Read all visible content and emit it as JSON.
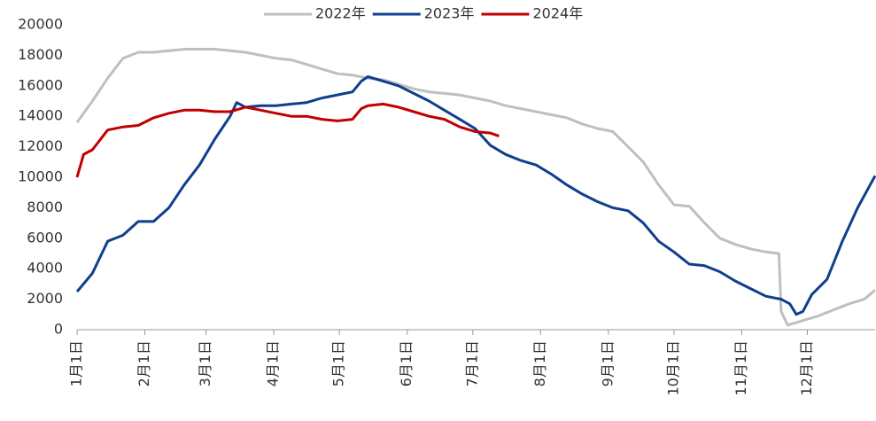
{
  "chart_data": {
    "type": "line",
    "xlim": [
      0,
      365
    ],
    "xticks": [
      {
        "value": 0,
        "label": "1月1日"
      },
      {
        "value": 31,
        "label": "2月1日"
      },
      {
        "value": 59,
        "label": "3月1日"
      },
      {
        "value": 90,
        "label": "4月1日"
      },
      {
        "value": 120,
        "label": "5月1日"
      },
      {
        "value": 151,
        "label": "6月1日"
      },
      {
        "value": 181,
        "label": "7月1日"
      },
      {
        "value": 212,
        "label": "8月1日"
      },
      {
        "value": 243,
        "label": "9月1日"
      },
      {
        "value": 273,
        "label": "10月1日"
      },
      {
        "value": 304,
        "label": "11月1日"
      },
      {
        "value": 334,
        "label": "12月1日"
      }
    ],
    "ylim": [
      0,
      20000
    ],
    "yticks": [
      0,
      2000,
      4000,
      6000,
      8000,
      10000,
      12000,
      14000,
      16000,
      18000,
      20000
    ],
    "grid": false,
    "legend": "top",
    "series": [
      {
        "name": "2022年",
        "color": "#bfbfbf",
        "x": [
          0,
          7,
          14,
          21,
          28,
          35,
          42,
          49,
          56,
          63,
          70,
          77,
          84,
          91,
          98,
          105,
          112,
          119,
          126,
          133,
          140,
          147,
          154,
          161,
          168,
          175,
          182,
          189,
          196,
          203,
          210,
          217,
          224,
          231,
          238,
          245,
          252,
          259,
          266,
          273,
          280,
          287,
          294,
          301,
          308,
          315,
          321,
          322,
          325,
          332,
          339,
          346,
          353,
          360,
          365
        ],
        "values": [
          13600,
          15000,
          16500,
          17800,
          18200,
          18200,
          18300,
          18400,
          18400,
          18400,
          18300,
          18200,
          18000,
          17800,
          17700,
          17400,
          17100,
          16800,
          16700,
          16500,
          16400,
          16100,
          15800,
          15600,
          15500,
          15400,
          15200,
          15000,
          14700,
          14500,
          14300,
          14100,
          13900,
          13500,
          13200,
          13000,
          12000,
          11000,
          9500,
          8200,
          8100,
          7000,
          6000,
          5600,
          5300,
          5100,
          5000,
          1200,
          300,
          600,
          900,
          1300,
          1700,
          2000,
          2600
        ]
      },
      {
        "name": "2023年",
        "color": "#0f3f8c",
        "x": [
          0,
          7,
          14,
          21,
          28,
          35,
          42,
          49,
          56,
          63,
          70,
          73,
          77,
          84,
          91,
          98,
          105,
          112,
          119,
          126,
          130,
          133,
          140,
          147,
          154,
          161,
          168,
          175,
          182,
          189,
          196,
          203,
          210,
          217,
          224,
          231,
          238,
          245,
          252,
          259,
          266,
          273,
          280,
          287,
          294,
          301,
          308,
          315,
          322,
          326,
          329,
          332,
          336,
          343,
          350,
          357,
          365
        ],
        "values": [
          2500,
          3700,
          5800,
          6200,
          7100,
          7100,
          8000,
          9500,
          10800,
          12500,
          14000,
          14900,
          14600,
          14700,
          14700,
          14800,
          14900,
          15200,
          15400,
          15600,
          16300,
          16600,
          16300,
          16000,
          15500,
          15000,
          14400,
          13800,
          13200,
          12100,
          11500,
          11100,
          10800,
          10200,
          9500,
          8900,
          8400,
          8000,
          7800,
          7000,
          5800,
          5100,
          4300,
          4200,
          3800,
          3200,
          2700,
          2200,
          2000,
          1700,
          1000,
          1200,
          2300,
          3300,
          5800,
          8000,
          10100
        ]
      },
      {
        "name": "2024年",
        "color": "#c00000",
        "x": [
          0,
          3,
          7,
          14,
          21,
          28,
          35,
          42,
          49,
          56,
          63,
          70,
          77,
          84,
          91,
          98,
          105,
          112,
          119,
          126,
          130,
          133,
          140,
          147,
          154,
          161,
          168,
          175,
          182,
          189,
          193
        ],
        "values": [
          10000,
          11500,
          11800,
          13100,
          13300,
          13400,
          13900,
          14200,
          14400,
          14400,
          14300,
          14300,
          14600,
          14400,
          14200,
          14000,
          14000,
          13800,
          13700,
          13800,
          14500,
          14700,
          14800,
          14600,
          14300,
          14000,
          13800,
          13300,
          13000,
          12900,
          12700
        ]
      }
    ]
  }
}
